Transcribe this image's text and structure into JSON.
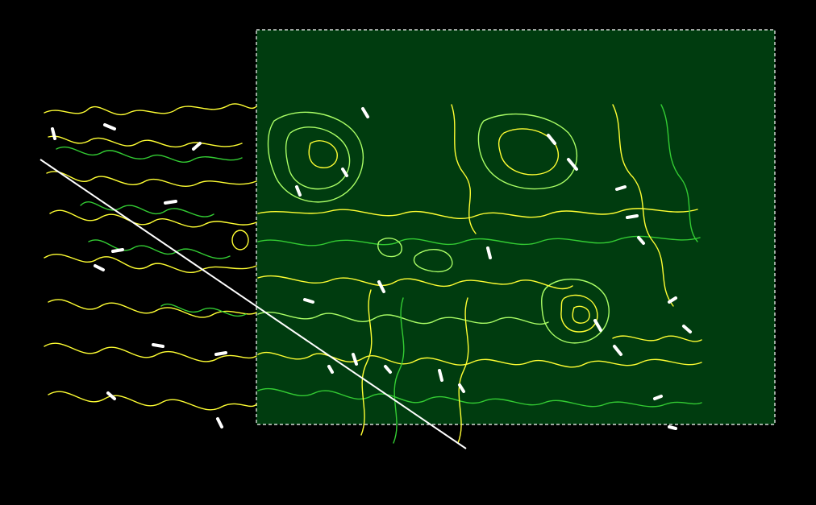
{
  "map": {
    "background": "#000000",
    "colors": {
      "contour_primary": "#ffff33",
      "contour_secondary": "#33cc33",
      "contour_highlight": "#aaff66",
      "contour_label": "#ffffff",
      "selection_fill": "#003c0f",
      "selection_border": "#ffffff",
      "profile_line": "#ffffff"
    },
    "layers": [
      "contour-lines",
      "selection-rectangle",
      "profile-line"
    ],
    "selection": {
      "style": "dashed",
      "visible": true
    },
    "profile_line": {
      "visible": true
    }
  }
}
